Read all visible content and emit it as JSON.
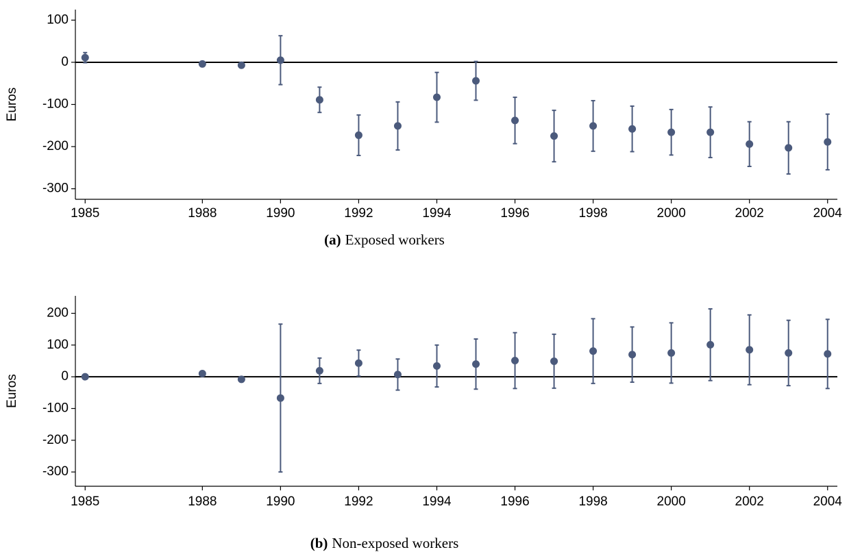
{
  "chart_data": [
    {
      "type": "errorbar",
      "caption_label": "(a)",
      "caption": "Exposed workers",
      "ylabel": "Euros",
      "color": "#4b5a7c",
      "x": [
        1985,
        1988,
        1989,
        1990,
        1991,
        1992,
        1993,
        1994,
        1995,
        1996,
        1997,
        1998,
        1999,
        2000,
        2001,
        2002,
        2003,
        2004
      ],
      "values": [
        11,
        -4,
        -7,
        5,
        -89,
        -173,
        -151,
        -83,
        -44,
        -138,
        -175,
        -151,
        -158,
        -166,
        -166,
        -194,
        -203,
        -189
      ],
      "errors": [
        12,
        6,
        6,
        58,
        30,
        48,
        57,
        59,
        46,
        55,
        61,
        60,
        54,
        54,
        60,
        53,
        62,
        66
      ],
      "xlim": [
        1984.75,
        2004.25
      ],
      "xticks": [
        1985,
        1988,
        1990,
        1992,
        1994,
        1996,
        1998,
        2000,
        2002,
        2004
      ],
      "ylim": [
        -325,
        125
      ],
      "yticks": [
        -300,
        -200,
        -100,
        0,
        100
      ],
      "reference_line": 0
    },
    {
      "type": "errorbar",
      "caption_label": "(b)",
      "caption": "Non-exposed workers",
      "ylabel": "Euros",
      "color": "#4b5a7c",
      "x": [
        1985,
        1988,
        1989,
        1990,
        1991,
        1992,
        1993,
        1994,
        1995,
        1996,
        1997,
        1998,
        1999,
        2000,
        2001,
        2002,
        2003,
        2004
      ],
      "values": [
        0,
        10,
        -8,
        -67,
        19,
        43,
        7,
        34,
        40,
        51,
        49,
        81,
        70,
        75,
        101,
        85,
        75,
        72
      ],
      "errors": [
        3,
        4,
        6,
        233,
        40,
        41,
        49,
        66,
        79,
        88,
        85,
        102,
        87,
        95,
        113,
        110,
        103,
        109
      ],
      "xlim": [
        1984.75,
        2004.25
      ],
      "xticks": [
        1985,
        1988,
        1990,
        1992,
        1994,
        1996,
        1998,
        2000,
        2002,
        2004
      ],
      "ylim": [
        -345,
        255
      ],
      "yticks": [
        -300,
        -200,
        -100,
        0,
        100,
        200
      ],
      "reference_line": 0
    }
  ]
}
